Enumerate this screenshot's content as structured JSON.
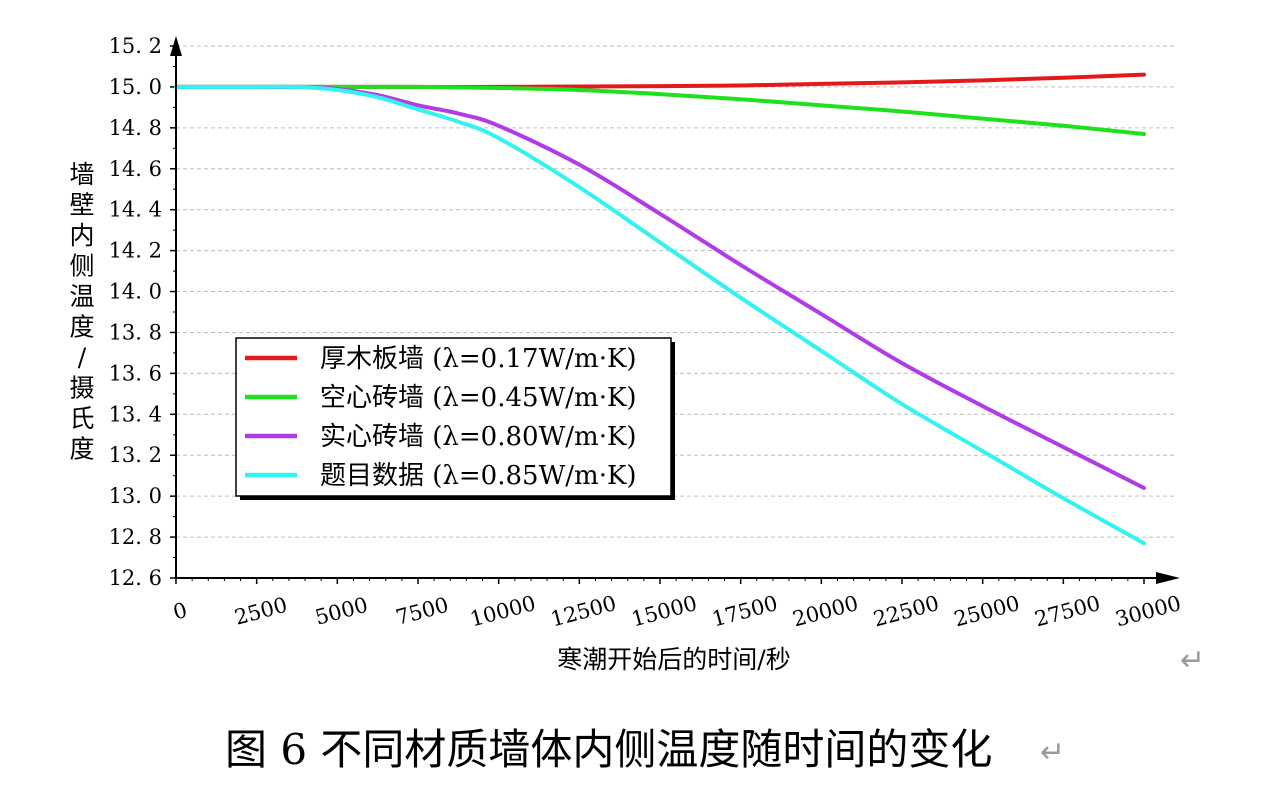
{
  "chart_data": {
    "type": "line",
    "xlabel": "寒潮开始后的时间/秒",
    "ylabel": "墙壁内侧温度/摄氏度",
    "xlim": [
      0,
      30000
    ],
    "ylim": [
      12.6,
      15.2
    ],
    "x_ticks": [
      "0",
      "2500",
      "5000",
      "7500",
      "10000",
      "12500",
      "15000",
      "17500",
      "20000",
      "22500",
      "25000",
      "27500",
      "30000"
    ],
    "y_ticks": [
      "15.2",
      "15.0",
      "14.8",
      "14.6",
      "14.4",
      "14.2",
      "14.0",
      "13.8",
      "13.6",
      "13.4",
      "13.2",
      "13.0",
      "12.8",
      "12.6"
    ],
    "grid": "horizontal-dashed",
    "legend_position": "lower-left",
    "series": [
      {
        "name": "厚木板墙 (λ=0.17W/m·K)",
        "color": "#e31a1c",
        "x": [
          0,
          2500,
          5000,
          7500,
          10000,
          12500,
          15000,
          17500,
          20000,
          22500,
          25000,
          27500,
          30000
        ],
        "y": [
          15.0,
          15.0,
          15.0,
          15.0,
          15.0,
          15.002,
          15.004,
          15.007,
          15.015,
          15.022,
          15.032,
          15.045,
          15.06
        ]
      },
      {
        "name": "空心砖墙 (λ=0.45W/m·K)",
        "color": "#1fe01f",
        "x": [
          0,
          2500,
          5000,
          7500,
          10000,
          12500,
          15000,
          17500,
          20000,
          22500,
          25000,
          27500,
          30000
        ],
        "y": [
          15.0,
          15.0,
          15.0,
          15.0,
          14.995,
          14.985,
          14.965,
          14.94,
          14.91,
          14.88,
          14.845,
          14.81,
          14.77
        ]
      },
      {
        "name": "实心砖墙 (λ=0.80W/m·K)",
        "color": "#b03ce8",
        "x": [
          0,
          2500,
          3750,
          5000,
          6250,
          7500,
          8750,
          10000,
          12500,
          15000,
          17500,
          20000,
          22500,
          25000,
          27500,
          30000
        ],
        "y": [
          15.0,
          15.0,
          15.0,
          14.99,
          14.96,
          14.91,
          14.87,
          14.81,
          14.62,
          14.38,
          14.13,
          13.89,
          13.65,
          13.44,
          13.24,
          13.04
        ]
      },
      {
        "name": "题目数据 (λ=0.85W/m·K)",
        "color": "#33f2f2",
        "x": [
          0,
          2500,
          3750,
          5000,
          6250,
          7500,
          8750,
          10000,
          12500,
          15000,
          17500,
          20000,
          22500,
          25000,
          27500,
          30000
        ],
        "y": [
          15.0,
          15.0,
          15.0,
          14.985,
          14.95,
          14.89,
          14.83,
          14.75,
          14.51,
          14.24,
          13.97,
          13.71,
          13.45,
          13.22,
          12.99,
          12.77
        ]
      }
    ]
  },
  "caption": "图 6  不同材质墙体内侧温度随时间的变化",
  "return_mark": "↵"
}
